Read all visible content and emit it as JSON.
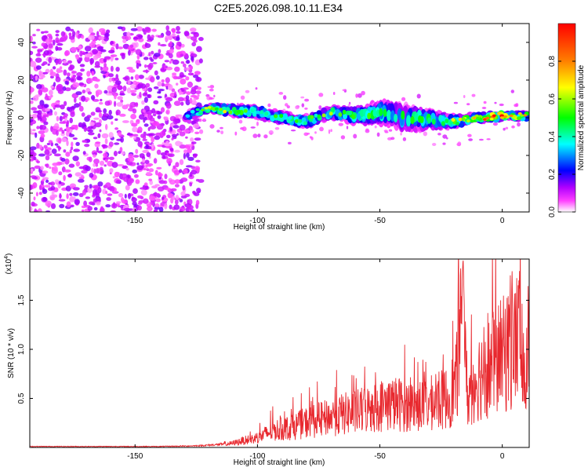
{
  "chart_data": [
    {
      "type": "heatmap",
      "title": "C2E5.2026.098.10.11.E34",
      "xlabel": "Height of straight line (km)",
      "ylabel": "Frequency (Hz)",
      "xlim": [
        -193,
        11
      ],
      "ylim": [
        -50,
        50
      ],
      "xticks": [
        -150,
        -100,
        -50,
        0
      ],
      "xtick_labels": [
        "-150",
        "-100",
        "-50",
        "0"
      ],
      "yticks": [
        -40,
        -20,
        0,
        20,
        40
      ],
      "ytick_labels": [
        "-40",
        "-20",
        "0",
        "20",
        "40"
      ],
      "colorbar": {
        "label": "Normalized spectral amplitude",
        "range": [
          0,
          1
        ],
        "ticks": [
          0.0,
          0.2,
          0.4,
          0.6,
          0.8
        ],
        "tick_labels": [
          "0.0",
          "0.2",
          "0.4",
          "0.6",
          "0.8"
        ],
        "colors": [
          "#ffffff",
          "#ff00ff",
          "#8000ff",
          "#0000ff",
          "#00ffff",
          "#00ff00",
          "#ffff00",
          "#ff8000",
          "#ff0000"
        ]
      },
      "noise_region": {
        "x_range": [
          -193,
          -123
        ],
        "y_range": [
          -50,
          48
        ],
        "typical_amplitude": 0.1
      },
      "signal_band": {
        "x": [
          -129,
          -120,
          -110,
          -100,
          -90,
          -80,
          -70,
          -60,
          -50,
          -40,
          -30,
          -20,
          -10,
          0,
          11
        ],
        "center_freq": [
          1,
          5,
          4,
          3,
          0,
          -2,
          3,
          1,
          3,
          0,
          -1,
          -2,
          0,
          1,
          1
        ],
        "half_width": [
          2,
          2,
          3,
          3,
          3,
          3,
          3,
          4,
          6,
          7,
          5,
          3,
          2,
          2,
          2
        ],
        "peak_amplitude": [
          0.35,
          0.55,
          0.55,
          0.45,
          0.45,
          0.45,
          0.5,
          0.5,
          0.45,
          0.4,
          0.45,
          0.55,
          0.7,
          0.95,
          0.6
        ]
      }
    },
    {
      "type": "line",
      "xlabel": "Height of straight line (km)",
      "ylabel": "SNR (10 * v/v)",
      "exponent_label": "(x10",
      "exponent_power": "4",
      "exponent_close": ")",
      "xlim": [
        -193,
        11
      ],
      "ylim": [
        0,
        1.92
      ],
      "xticks": [
        -150,
        -100,
        -50,
        0
      ],
      "xtick_labels": [
        "-150",
        "-100",
        "-50",
        "0"
      ],
      "yticks": [
        0.5,
        1.0,
        1.5
      ],
      "ytick_labels": [
        "0.5",
        "1.0",
        "1.5"
      ],
      "color": "#e8282e",
      "series": [
        {
          "name": "SNR",
          "x": [
            -193,
            -180,
            -160,
            -140,
            -128,
            -122,
            -116,
            -110,
            -106,
            -102,
            -98,
            -94,
            -90,
            -85,
            -80,
            -75,
            -70,
            -65,
            -60,
            -55,
            -50,
            -46,
            -42,
            -38,
            -34,
            -30,
            -26,
            -22,
            -19,
            -17,
            -16,
            -15,
            -14,
            -12,
            -10,
            -8,
            -6,
            -4,
            -2,
            0,
            2,
            4,
            6,
            7,
            8,
            9,
            10,
            11
          ],
          "y": [
            0.01,
            0.01,
            0.01,
            0.01,
            0.015,
            0.02,
            0.03,
            0.05,
            0.08,
            0.1,
            0.14,
            0.2,
            0.22,
            0.25,
            0.3,
            0.33,
            0.36,
            0.4,
            0.42,
            0.46,
            0.5,
            0.52,
            0.52,
            0.5,
            0.5,
            0.52,
            0.55,
            0.6,
            0.75,
            1.3,
            1.95,
            0.9,
            0.6,
            0.75,
            0.85,
            0.9,
            0.95,
            1.0,
            1.05,
            1.1,
            1.15,
            1.2,
            1.3,
            1.48,
            0.9,
            0.65,
            1.1,
            1.35
          ]
        }
      ]
    }
  ]
}
